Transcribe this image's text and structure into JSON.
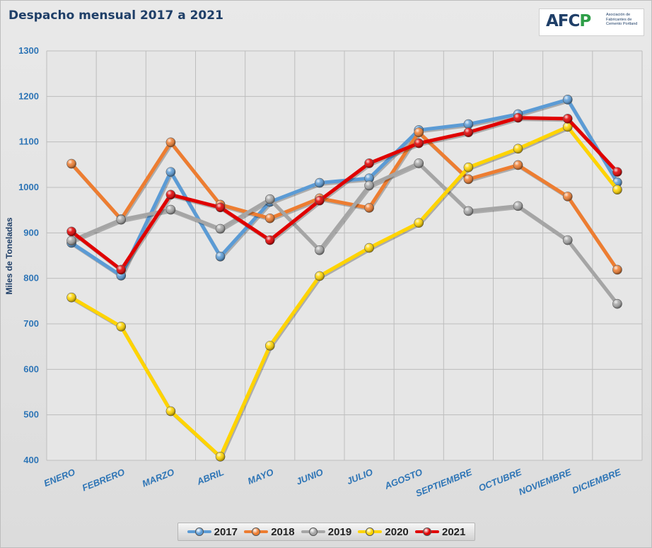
{
  "logo": {
    "mark": "AFCP",
    "text": "Asociación de Fabricantes de Cemento Portland"
  },
  "chart_data": {
    "type": "line",
    "title": "Despacho mensual 2017 a 2021",
    "xlabel": "",
    "ylabel": "Miles de Toneladas",
    "ylim": [
      400,
      1300
    ],
    "yticks": [
      400,
      500,
      600,
      700,
      800,
      900,
      1000,
      1100,
      1200,
      1300
    ],
    "grid": true,
    "legend_position": "bottom",
    "categories": [
      "ENERO",
      "FEBRERO",
      "MARZO",
      "ABRIL",
      "MAYO",
      "JUNIO",
      "JULIO",
      "AGOSTO",
      "SEPTIEMBRE",
      "OCTUBRE",
      "NOVIEMBRE",
      "DICIEMBRE"
    ],
    "series": [
      {
        "name": "2017",
        "color": "#5b9bd5",
        "values": [
          878,
          806,
          1034,
          848,
          968,
          1010,
          1020,
          1126,
          1139,
          1161,
          1193,
          1011
        ]
      },
      {
        "name": "2018",
        "color": "#ed7d31",
        "values": [
          1052,
          930,
          1099,
          962,
          932,
          976,
          955,
          1121,
          1018,
          1049,
          980,
          819
        ]
      },
      {
        "name": "2019",
        "color": "#a5a5a5",
        "values": [
          883,
          929,
          951,
          909,
          974,
          862,
          1004,
          1053,
          948,
          959,
          884,
          744
        ]
      },
      {
        "name": "2020",
        "color": "#ffd400",
        "values": [
          758,
          694,
          508,
          408,
          652,
          805,
          867,
          922,
          1044,
          1085,
          1133,
          995
        ]
      },
      {
        "name": "2021",
        "color": "#e00000",
        "values": [
          903,
          819,
          984,
          956,
          884,
          971,
          1053,
          1097,
          1121,
          1153,
          1151,
          1034
        ]
      }
    ]
  }
}
